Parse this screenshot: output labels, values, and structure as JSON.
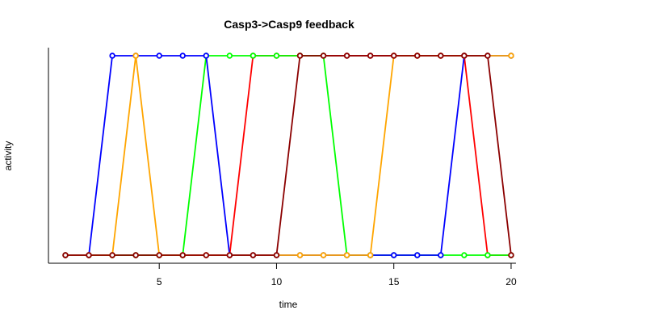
{
  "chart_data": {
    "type": "line",
    "title": "Casp3->Casp9 feedback",
    "xlabel": "time",
    "ylabel": "activity",
    "xlim": [
      0.5,
      20.5
    ],
    "ylim": [
      0,
      1
    ],
    "xticks": [
      5,
      10,
      15,
      20
    ],
    "grid": false,
    "legend": "none",
    "x": [
      1,
      2,
      3,
      4,
      5,
      6,
      7,
      8,
      9,
      10,
      11,
      12,
      13,
      14,
      15,
      16,
      17,
      18,
      19,
      20
    ],
    "series": [
      {
        "color": "#ff0000",
        "values": [
          0,
          0,
          0,
          0,
          0,
          0,
          0,
          0,
          1,
          1,
          1,
          1,
          1,
          1,
          1,
          1,
          1,
          1,
          0,
          0
        ]
      },
      {
        "color": "#00ff00",
        "values": [
          0,
          0,
          0,
          0,
          0,
          0,
          1,
          1,
          1,
          1,
          1,
          1,
          0,
          0,
          0,
          0,
          0,
          0,
          0,
          0
        ]
      },
      {
        "color": "#0000ff",
        "values": [
          0,
          0,
          1,
          1,
          1,
          1,
          1,
          0,
          0,
          0,
          0,
          0,
          0,
          0,
          0,
          0,
          0,
          1,
          1,
          1
        ]
      },
      {
        "color": "#ffa500",
        "values": [
          0,
          0,
          0,
          1,
          0,
          0,
          0,
          0,
          0,
          0,
          0,
          0,
          0,
          0,
          1,
          1,
          1,
          1,
          1,
          1
        ]
      },
      {
        "color": "#8b0000",
        "values": [
          0,
          0,
          0,
          0,
          0,
          0,
          0,
          0,
          0,
          0,
          1,
          1,
          1,
          1,
          1,
          1,
          1,
          1,
          1,
          0
        ]
      }
    ]
  }
}
